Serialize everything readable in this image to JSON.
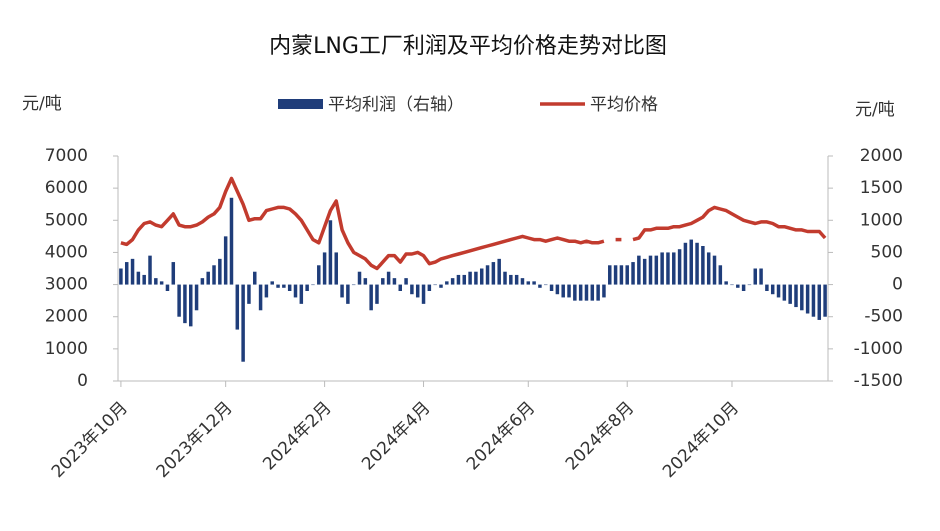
{
  "chart_data": {
    "type": "bar_line",
    "title": "内蒙LNG工厂利润及平均价格走势对比图",
    "y_label": "元/吨",
    "y2_label": "元/吨",
    "categories": [
      "2023年10月",
      null,
      null,
      null,
      null,
      null,
      null,
      null,
      null,
      null,
      null,
      null,
      null,
      null,
      null,
      null,
      null,
      null,
      "2023年12月",
      null,
      null,
      null,
      null,
      null,
      null,
      null,
      null,
      null,
      null,
      null,
      null,
      null,
      null,
      null,
      null,
      "2024年2月",
      null,
      null,
      null,
      null,
      null,
      null,
      null,
      null,
      null,
      null,
      null,
      null,
      null,
      null,
      null,
      null,
      "2024年4月",
      null,
      null,
      null,
      null,
      null,
      null,
      null,
      null,
      null,
      null,
      null,
      null,
      null,
      null,
      null,
      null,
      null,
      "2024年6月",
      null,
      null,
      null,
      null,
      null,
      null,
      null,
      null,
      null,
      null,
      null,
      null,
      null,
      null,
      null,
      null,
      "2024年8月",
      null,
      null,
      null,
      null,
      null,
      null,
      null,
      null,
      null,
      null,
      null,
      null,
      null,
      null,
      null,
      null,
      null,
      "2024年10月",
      null,
      null,
      null,
      null,
      null,
      null,
      null,
      null,
      null,
      null,
      null,
      null,
      null,
      null,
      null,
      null
    ],
    "series": [
      {
        "name": "平均利润（右轴）",
        "type": "bar",
        "axis": "y2",
        "color": "#1f3d7a",
        "values": [
          250,
          350,
          400,
          200,
          150,
          450,
          100,
          50,
          -100,
          350,
          -500,
          -600,
          -650,
          -400,
          100,
          200,
          300,
          400,
          750,
          1350,
          -700,
          -1200,
          -300,
          200,
          -400,
          -200,
          50,
          -50,
          -50,
          -100,
          -200,
          -300,
          -100,
          0,
          300,
          500,
          1000,
          500,
          -200,
          -300,
          0,
          200,
          100,
          -400,
          -300,
          100,
          200,
          100,
          -100,
          100,
          -150,
          -200,
          -300,
          -100,
          0,
          -50,
          50,
          100,
          150,
          150,
          200,
          200,
          250,
          300,
          350,
          400,
          200,
          150,
          150,
          100,
          50,
          50,
          -50,
          0,
          -100,
          -150,
          -200,
          -200,
          -250,
          -250,
          -250,
          -250,
          -250,
          -200,
          300,
          300,
          300,
          300,
          350,
          450,
          400,
          450,
          450,
          500,
          500,
          500,
          550,
          650,
          700,
          650,
          600,
          500,
          450,
          300,
          50,
          0,
          -50,
          -100,
          0,
          250,
          250,
          -100,
          -150,
          -200,
          -250,
          -300,
          -350,
          -400,
          -450,
          -500,
          -550,
          -500
        ]
      },
      {
        "name": "平均价格",
        "type": "line",
        "axis": "y",
        "color": "#c23b2e",
        "values": [
          4300,
          4250,
          4400,
          4700,
          4900,
          4950,
          4850,
          4800,
          5000,
          5200,
          4850,
          4800,
          4800,
          4850,
          4950,
          5100,
          5200,
          5400,
          5900,
          6300,
          5900,
          5500,
          5000,
          5050,
          5050,
          5300,
          5350,
          5400,
          5400,
          5350,
          5200,
          5000,
          4700,
          4400,
          4300,
          4800,
          5300,
          5600,
          4700,
          4300,
          4000,
          3900,
          3800,
          3600,
          3500,
          3700,
          3900,
          3900,
          3700,
          3950,
          3950,
          4000,
          3900,
          3650,
          3700,
          3800,
          3850,
          3900,
          3950,
          4000,
          4050,
          4100,
          4150,
          4200,
          4250,
          4300,
          4350,
          4400,
          4450,
          4500,
          4450,
          4400,
          4400,
          4350,
          4400,
          4450,
          4400,
          4350,
          4350,
          4300,
          4350,
          4300,
          4300,
          4350,
          null,
          4400,
          4400,
          null,
          4400,
          4450,
          4700,
          4700,
          4750,
          4750,
          4750,
          4800,
          4800,
          4850,
          4900,
          5000,
          5100,
          5300,
          5400,
          5350,
          5300,
          5200,
          5100,
          5000,
          4950,
          4900,
          4950,
          4950,
          4900,
          4800,
          4800,
          4750,
          4700,
          4700,
          4650,
          4650,
          4650,
          4450
        ]
      }
    ],
    "ylim": [
      0,
      7000
    ],
    "yticks": [
      0,
      1000,
      2000,
      3000,
      4000,
      5000,
      6000,
      7000
    ],
    "y2lim": [
      -1500,
      2000
    ],
    "y2ticks": [
      -1500,
      -1000,
      -500,
      0,
      500,
      1000,
      1500,
      2000
    ]
  }
}
